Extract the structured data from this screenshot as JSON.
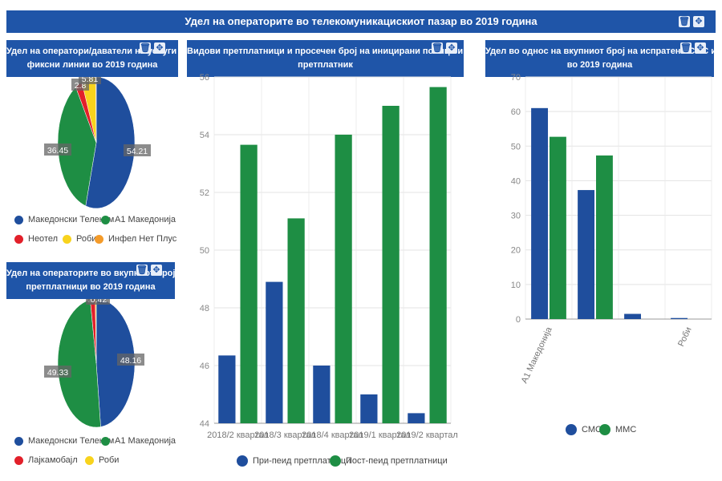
{
  "header": {
    "title": "Удел на операторите во телекомуникацискиот пазар во 2019 година"
  },
  "colors": {
    "blue": "#1f4e9d",
    "green": "#1e8e44",
    "red": "#e2202a",
    "yellow": "#f8d31d",
    "orange": "#f49b2a",
    "header_bg": "#1f55a8"
  },
  "icons": [
    "trash-icon",
    "move-icon"
  ],
  "chart_data": [
    {
      "type": "pie",
      "title_line1": "Удел на оператори/даватели на услуги ... ед",
      "title_line2": "фиксни линии во 2019 година",
      "slices": [
        {
          "name": "Македонски Телеком",
          "value": 54.21,
          "color": "#1f4e9d"
        },
        {
          "name": "А1 Македонија",
          "value": 36.45,
          "color": "#1e8e44"
        },
        {
          "name": "Неотел",
          "value": 2.8,
          "color": "#e2202a"
        },
        {
          "name": "Роби",
          "value": 5.81,
          "color": "#f8d31d"
        },
        {
          "name": "Инфел Нет Плус",
          "value": 0.3,
          "color": "#f49b2a"
        }
      ],
      "labels": [
        "54.21",
        "36.45",
        "2.8",
        "5.81"
      ]
    },
    {
      "type": "pie",
      "title_line1": "Удел на операторите во вкупниот број ... ни",
      "title_line2": "претплатници во 2019 година",
      "slices": [
        {
          "name": "Македонски Телеком",
          "value": 48.16,
          "color": "#1f4e9d"
        },
        {
          "name": "А1 Македонија",
          "value": 49.33,
          "color": "#1e8e44"
        },
        {
          "name": "Лајкамобајл",
          "value": 2.09,
          "color": "#e2202a"
        },
        {
          "name": "Роби",
          "value": 0.42,
          "color": "#f8d31d"
        }
      ],
      "labels": [
        "48.16",
        "49.33",
        "2",
        "0.42"
      ]
    },
    {
      "type": "bar",
      "title_line1": "Видови претплатници и просечен број на иницирани повици и минути ... а",
      "title_line2": "претплатник",
      "categories": [
        "2018/2 квартал",
        "2018/3 квартал",
        "2018/4 квартал",
        "2019/1 квартал",
        "2019/2 квартал"
      ],
      "series": [
        {
          "name": "При-пеид претплатници",
          "values": [
            46.35,
            48.9,
            46.0,
            45.0,
            44.35
          ],
          "color": "#1f4e9d"
        },
        {
          "name": "Пост-пеид претплатници",
          "values": [
            53.65,
            51.1,
            54.0,
            55.0,
            55.65
          ],
          "color": "#1e8e44"
        }
      ],
      "ylim": [
        44,
        56
      ],
      "yticks": [
        "44",
        "46",
        "48",
        "50",
        "52",
        "54",
        "56"
      ],
      "grid": true,
      "legend": "bottom"
    },
    {
      "type": "bar",
      "title_line1": "Удел во однос на вкупниот број на испратени СМС и ММС ... ки",
      "title_line2": "во 2019 година",
      "categories": [
        "А1 Македонија",
        "",
        "",
        "Роби"
      ],
      "series": [
        {
          "name": "СМС",
          "values": [
            61,
            37.3,
            1.5,
            0.3
          ],
          "color": "#1f4e9d"
        },
        {
          "name": "ММС",
          "values": [
            52.7,
            47.3,
            0,
            0
          ],
          "color": "#1e8e44"
        }
      ],
      "ylim": [
        0,
        70
      ],
      "yticks": [
        "0",
        "10",
        "20",
        "30",
        "40",
        "50",
        "60",
        "70"
      ],
      "grid": true,
      "legend": "bottom"
    }
  ]
}
